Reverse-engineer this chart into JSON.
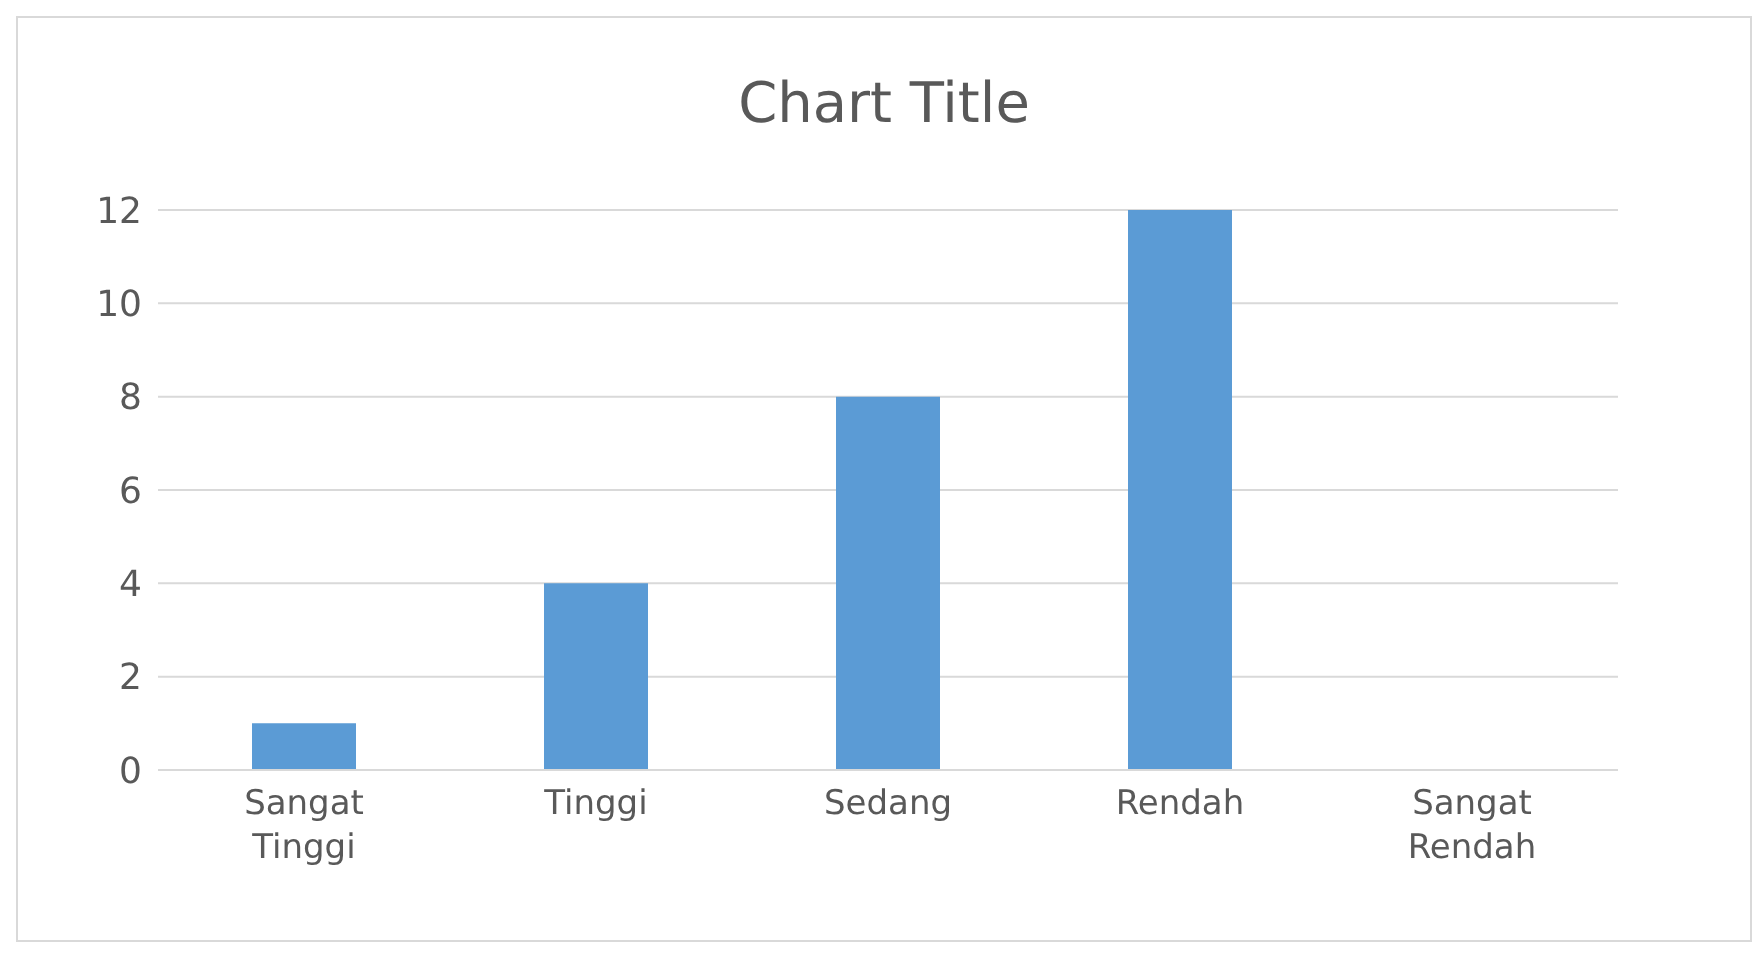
{
  "chart_data": {
    "type": "bar",
    "title": "Chart Title",
    "categories": [
      "Sangat Tinggi",
      "Tinggi",
      "Sedang",
      "Rendah",
      "Sangat Rendah"
    ],
    "values": [
      1,
      4,
      8,
      12,
      0
    ],
    "color": "#5b9bd5",
    "ylim": [
      0,
      12
    ],
    "yticks": [
      0,
      2,
      4,
      6,
      8,
      10,
      12
    ],
    "grid": "y"
  }
}
